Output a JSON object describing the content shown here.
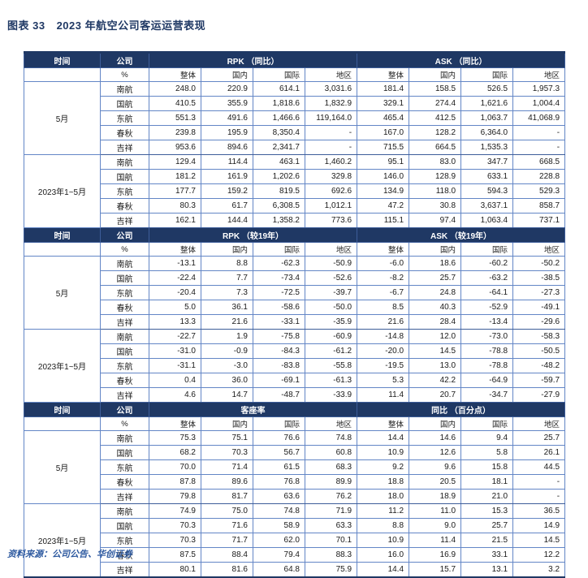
{
  "title_label": "图表 33",
  "title_text": "2023 年航空公司客运运营表现",
  "source": "资料来源：公司公告、华创证券",
  "colors": {
    "header_bg": "#1f3864",
    "grid": "#6386c6",
    "frame": "#1f3864",
    "title_color": "#1f3864",
    "source_color": "#2e5aa0"
  },
  "table": {
    "time_header": "时间",
    "company_header": "公司",
    "percent_label": "%",
    "sub_headers": [
      "整体",
      "国内",
      "国际",
      "地区"
    ],
    "sections": [
      {
        "left_title": "RPK （同比）",
        "right_title": "ASK （同比）",
        "groups": [
          {
            "time": "5月",
            "rows": [
              {
                "company": "南航",
                "values": [
                  "248.0",
                  "220.9",
                  "614.1",
                  "3,031.6",
                  "181.4",
                  "158.5",
                  "526.5",
                  "1,957.3"
                ]
              },
              {
                "company": "国航",
                "values": [
                  "410.5",
                  "355.9",
                  "1,818.6",
                  "1,832.9",
                  "329.1",
                  "274.4",
                  "1,621.6",
                  "1,004.4"
                ]
              },
              {
                "company": "东航",
                "values": [
                  "551.3",
                  "491.6",
                  "1,466.6",
                  "119,164.0",
                  "465.4",
                  "412.5",
                  "1,063.7",
                  "41,068.9"
                ]
              },
              {
                "company": "春秋",
                "values": [
                  "239.8",
                  "195.9",
                  "8,350.4",
                  "-",
                  "167.0",
                  "128.2",
                  "6,364.0",
                  "-"
                ]
              },
              {
                "company": "吉祥",
                "values": [
                  "953.6",
                  "894.6",
                  "2,341.7",
                  "-",
                  "715.5",
                  "664.5",
                  "1,535.3",
                  "-"
                ]
              }
            ]
          },
          {
            "time": "2023年1~5月",
            "rows": [
              {
                "company": "南航",
                "values": [
                  "129.4",
                  "114.4",
                  "463.1",
                  "1,460.2",
                  "95.1",
                  "83.0",
                  "347.7",
                  "668.5"
                ]
              },
              {
                "company": "国航",
                "values": [
                  "181.2",
                  "161.9",
                  "1,202.6",
                  "329.8",
                  "146.0",
                  "128.9",
                  "633.1",
                  "228.8"
                ]
              },
              {
                "company": "东航",
                "values": [
                  "177.7",
                  "159.2",
                  "819.5",
                  "692.6",
                  "134.9",
                  "118.0",
                  "594.3",
                  "529.3"
                ]
              },
              {
                "company": "春秋",
                "values": [
                  "80.3",
                  "61.7",
                  "6,308.5",
                  "1,012.1",
                  "47.2",
                  "30.8",
                  "3,637.1",
                  "858.7"
                ]
              },
              {
                "company": "吉祥",
                "values": [
                  "162.1",
                  "144.4",
                  "1,358.2",
                  "773.6",
                  "115.1",
                  "97.4",
                  "1,063.4",
                  "737.1"
                ]
              }
            ]
          }
        ]
      },
      {
        "left_title": "RPK （较19年）",
        "right_title": "ASK （较19年）",
        "groups": [
          {
            "time": "5月",
            "rows": [
              {
                "company": "南航",
                "values": [
                  "-13.1",
                  "8.8",
                  "-62.3",
                  "-50.9",
                  "-6.0",
                  "18.6",
                  "-60.2",
                  "-50.2"
                ]
              },
              {
                "company": "国航",
                "values": [
                  "-22.4",
                  "7.7",
                  "-73.4",
                  "-52.6",
                  "-8.2",
                  "25.7",
                  "-63.2",
                  "-38.5"
                ]
              },
              {
                "company": "东航",
                "values": [
                  "-20.4",
                  "7.3",
                  "-72.5",
                  "-39.7",
                  "-6.7",
                  "24.8",
                  "-64.1",
                  "-27.3"
                ]
              },
              {
                "company": "春秋",
                "values": [
                  "5.0",
                  "36.1",
                  "-58.6",
                  "-50.0",
                  "8.5",
                  "40.3",
                  "-52.9",
                  "-49.1"
                ]
              },
              {
                "company": "吉祥",
                "values": [
                  "13.3",
                  "21.6",
                  "-33.1",
                  "-35.9",
                  "21.6",
                  "28.4",
                  "-13.4",
                  "-29.6"
                ]
              }
            ]
          },
          {
            "time": "2023年1~5月",
            "rows": [
              {
                "company": "南航",
                "values": [
                  "-22.7",
                  "1.9",
                  "-75.8",
                  "-60.9",
                  "-14.8",
                  "12.0",
                  "-73.0",
                  "-58.3"
                ]
              },
              {
                "company": "国航",
                "values": [
                  "-31.0",
                  "-0.9",
                  "-84.3",
                  "-61.2",
                  "-20.0",
                  "14.5",
                  "-78.8",
                  "-50.5"
                ]
              },
              {
                "company": "东航",
                "values": [
                  "-31.1",
                  "-3.0",
                  "-83.8",
                  "-55.8",
                  "-19.5",
                  "13.0",
                  "-78.8",
                  "-48.2"
                ]
              },
              {
                "company": "春秋",
                "values": [
                  "0.4",
                  "36.0",
                  "-69.1",
                  "-61.3",
                  "5.3",
                  "42.2",
                  "-64.9",
                  "-59.7"
                ]
              },
              {
                "company": "吉祥",
                "values": [
                  "4.6",
                  "14.7",
                  "-48.7",
                  "-33.9",
                  "11.4",
                  "20.7",
                  "-34.7",
                  "-27.9"
                ]
              }
            ]
          }
        ]
      },
      {
        "left_title": "客座率",
        "right_title": "同比 （百分点）",
        "groups": [
          {
            "time": "5月",
            "rows": [
              {
                "company": "南航",
                "values": [
                  "75.3",
                  "75.1",
                  "76.6",
                  "74.8",
                  "14.4",
                  "14.6",
                  "9.4",
                  "25.7"
                ]
              },
              {
                "company": "国航",
                "values": [
                  "68.2",
                  "70.3",
                  "56.7",
                  "60.8",
                  "10.9",
                  "12.6",
                  "5.8",
                  "26.1"
                ]
              },
              {
                "company": "东航",
                "values": [
                  "70.0",
                  "71.4",
                  "61.5",
                  "68.3",
                  "9.2",
                  "9.6",
                  "15.8",
                  "44.5"
                ]
              },
              {
                "company": "春秋",
                "values": [
                  "87.8",
                  "89.6",
                  "76.8",
                  "89.9",
                  "18.8",
                  "20.5",
                  "18.1",
                  "-"
                ]
              },
              {
                "company": "吉祥",
                "values": [
                  "79.8",
                  "81.7",
                  "63.6",
                  "76.2",
                  "18.0",
                  "18.9",
                  "21.0",
                  "-"
                ]
              }
            ]
          },
          {
            "time": "2023年1~5月",
            "rows": [
              {
                "company": "南航",
                "values": [
                  "74.9",
                  "75.0",
                  "74.8",
                  "71.9",
                  "11.2",
                  "11.0",
                  "15.3",
                  "36.5"
                ]
              },
              {
                "company": "国航",
                "values": [
                  "70.3",
                  "71.6",
                  "58.9",
                  "63.3",
                  "8.8",
                  "9.0",
                  "25.7",
                  "14.9"
                ]
              },
              {
                "company": "东航",
                "values": [
                  "70.3",
                  "71.7",
                  "62.0",
                  "70.1",
                  "10.9",
                  "11.4",
                  "21.5",
                  "14.5"
                ]
              },
              {
                "company": "春秋",
                "values": [
                  "87.5",
                  "88.4",
                  "79.4",
                  "88.3",
                  "16.0",
                  "16.9",
                  "33.1",
                  "12.2"
                ]
              },
              {
                "company": "吉祥",
                "values": [
                  "80.1",
                  "81.6",
                  "64.8",
                  "75.9",
                  "14.4",
                  "15.7",
                  "13.1",
                  "3.2"
                ]
              }
            ]
          }
        ]
      }
    ]
  }
}
